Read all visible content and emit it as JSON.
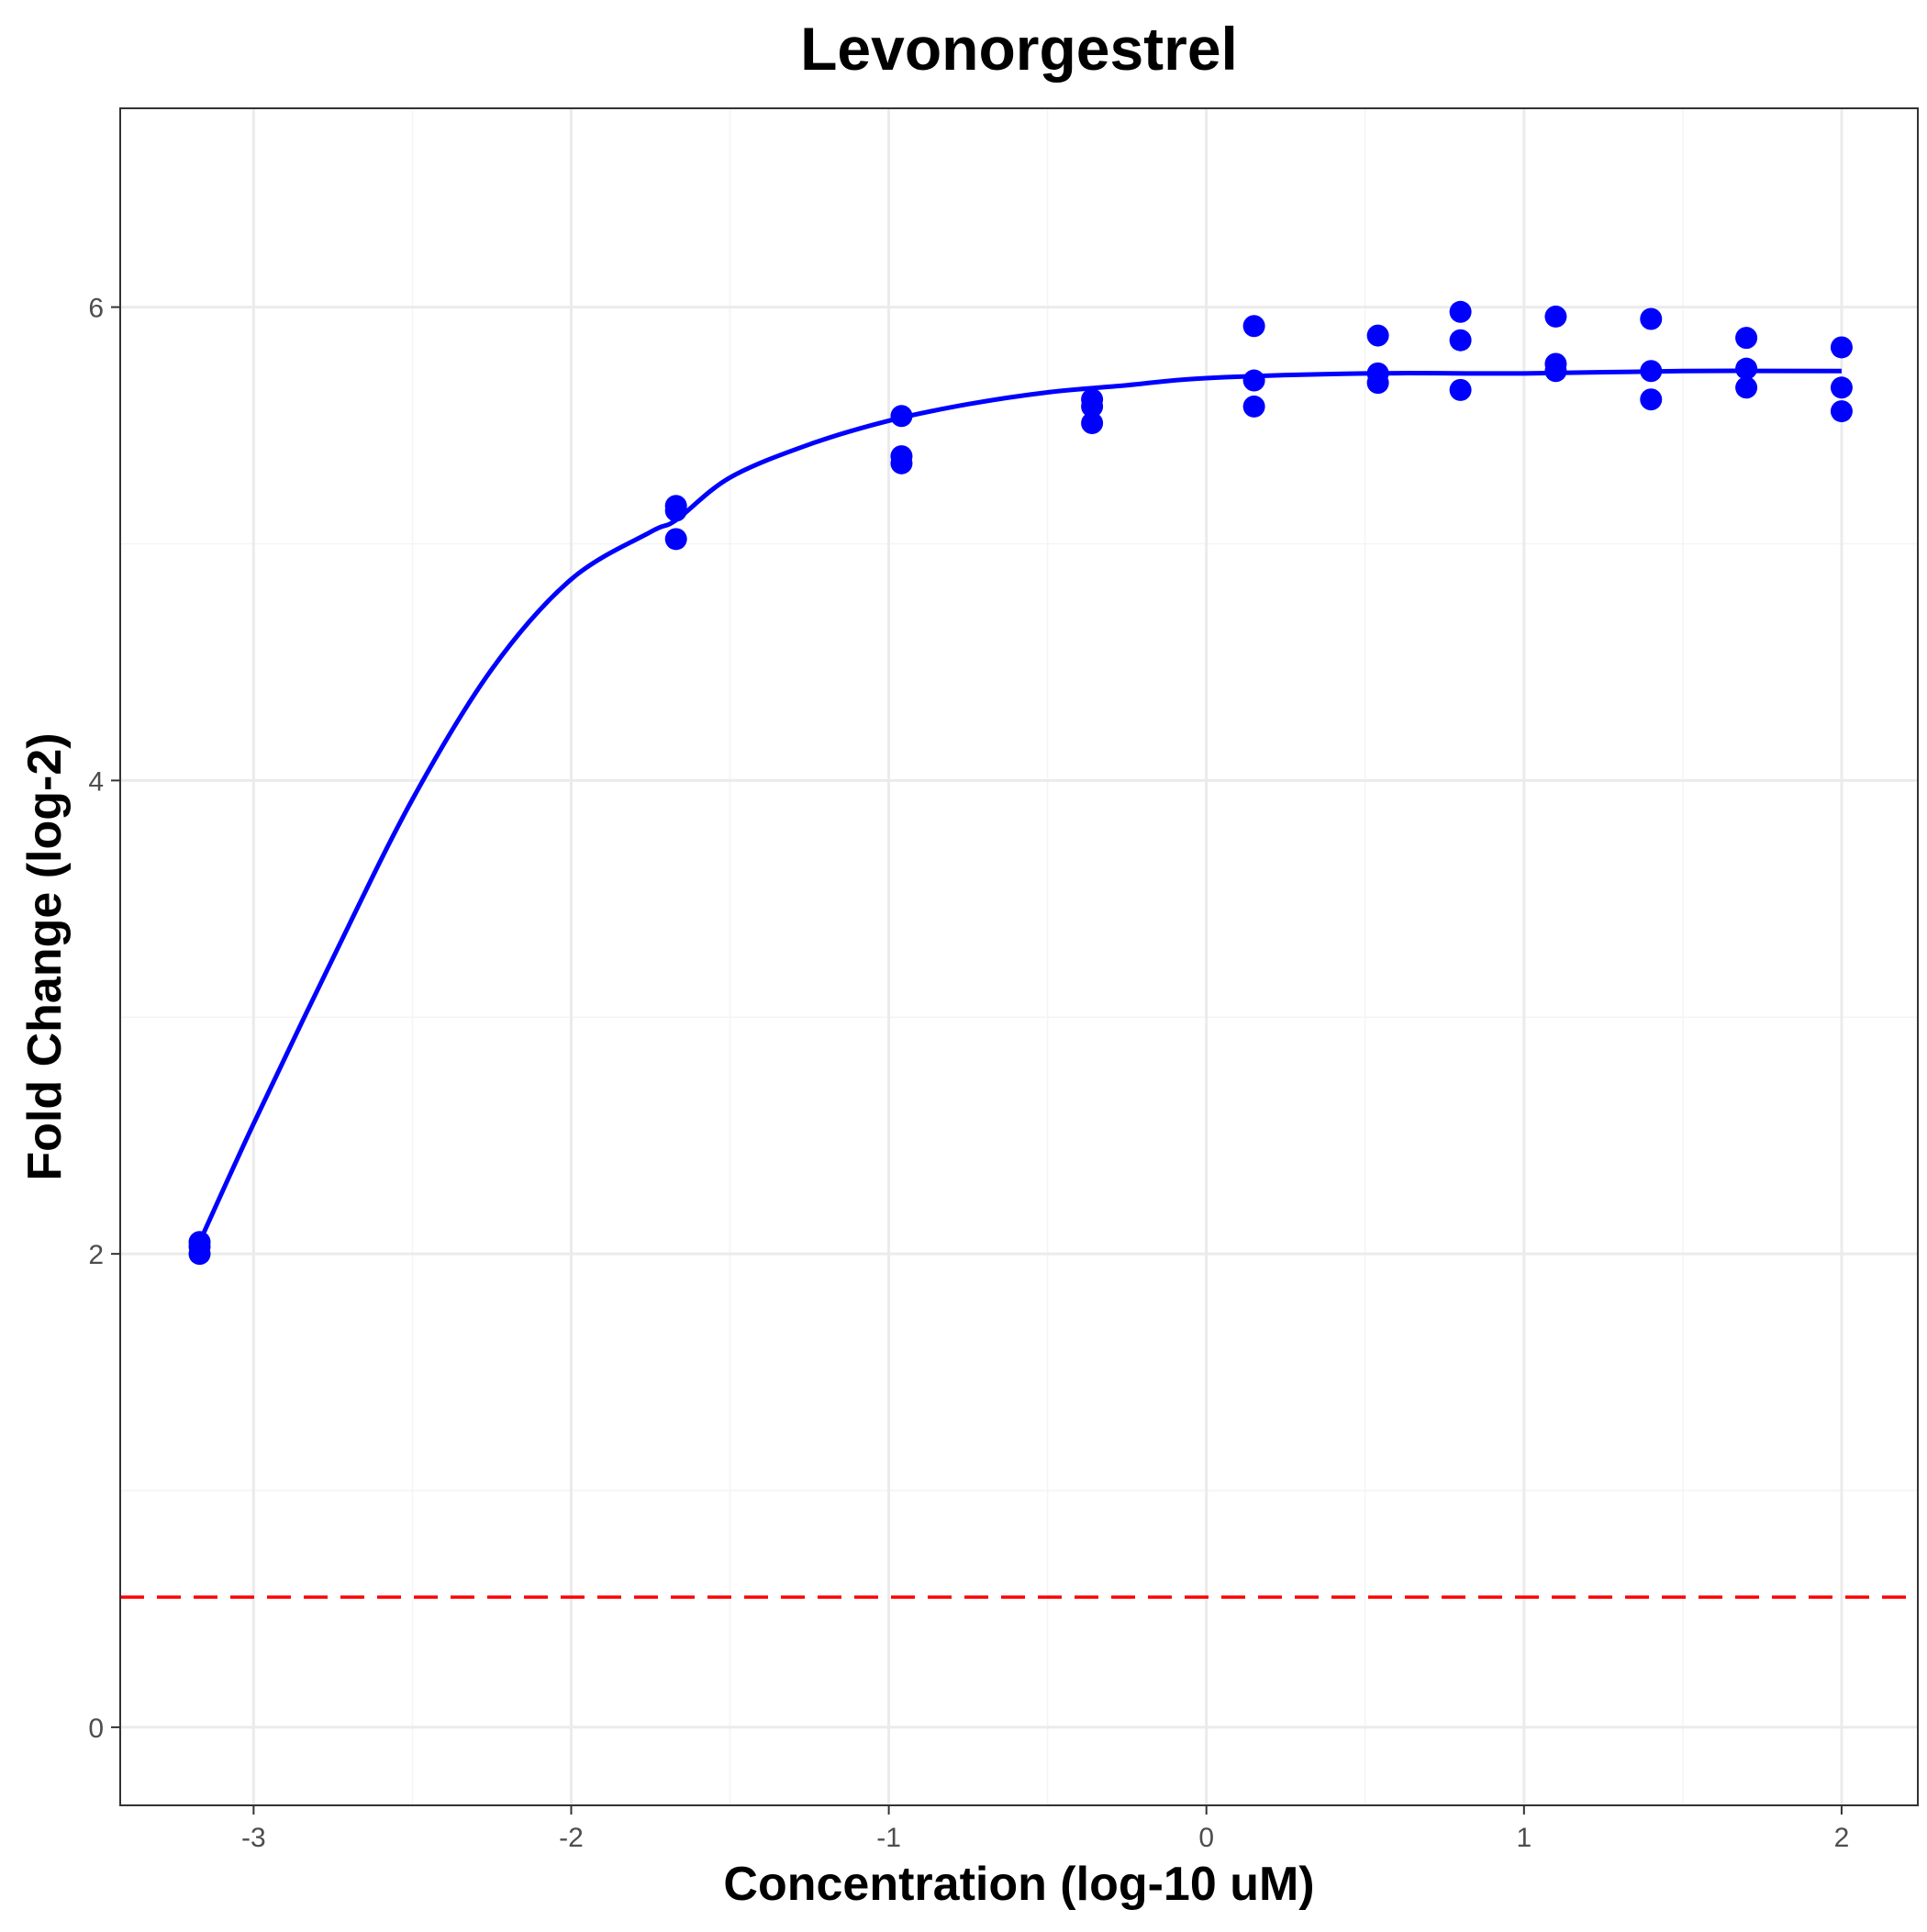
{
  "chart_data": {
    "type": "scatter",
    "title": "Levonorgestrel",
    "xlabel": "Concentration (log-10 uM)",
    "ylabel": "Fold Change (log-2)",
    "xlim": [
      -3.42,
      2.24
    ],
    "ylim": [
      -0.33,
      6.84
    ],
    "x_ticks": [
      -3,
      -2,
      -1,
      0,
      1,
      2
    ],
    "x_tick_labels": [
      "-3",
      "-2",
      "-1",
      "0",
      "1",
      "2"
    ],
    "y_ticks": [
      0,
      2,
      4,
      6
    ],
    "y_tick_labels": [
      "0",
      "2",
      "4",
      "6"
    ],
    "grid": true,
    "legend": "none",
    "colors": {
      "points": "#0000ff",
      "fit": "#0000ff",
      "reference": "#ff0000",
      "grid_major": "#ebebeb",
      "grid_minor": "#f4f4f4",
      "frame": "#333333"
    },
    "points": [
      {
        "x": -3.17,
        "y": 2.05
      },
      {
        "x": -3.17,
        "y": 2.03
      },
      {
        "x": -3.17,
        "y": 2.0
      },
      {
        "x": -1.67,
        "y": 5.16
      },
      {
        "x": -1.67,
        "y": 5.14
      },
      {
        "x": -1.67,
        "y": 5.02
      },
      {
        "x": -0.96,
        "y": 5.54
      },
      {
        "x": -0.96,
        "y": 5.37
      },
      {
        "x": -0.96,
        "y": 5.34
      },
      {
        "x": -0.36,
        "y": 5.61
      },
      {
        "x": -0.36,
        "y": 5.58
      },
      {
        "x": -0.36,
        "y": 5.51
      },
      {
        "x": 0.15,
        "y": 5.92
      },
      {
        "x": 0.15,
        "y": 5.69
      },
      {
        "x": 0.15,
        "y": 5.58
      },
      {
        "x": 0.54,
        "y": 5.88
      },
      {
        "x": 0.54,
        "y": 5.72
      },
      {
        "x": 0.54,
        "y": 5.68
      },
      {
        "x": 0.8,
        "y": 5.98
      },
      {
        "x": 0.8,
        "y": 5.86
      },
      {
        "x": 0.8,
        "y": 5.65
      },
      {
        "x": 1.1,
        "y": 5.96
      },
      {
        "x": 1.1,
        "y": 5.76
      },
      {
        "x": 1.1,
        "y": 5.73
      },
      {
        "x": 1.4,
        "y": 5.95
      },
      {
        "x": 1.4,
        "y": 5.73
      },
      {
        "x": 1.4,
        "y": 5.61
      },
      {
        "x": 1.7,
        "y": 5.87
      },
      {
        "x": 1.7,
        "y": 5.74
      },
      {
        "x": 1.7,
        "y": 5.66
      },
      {
        "x": 2.0,
        "y": 5.83
      },
      {
        "x": 2.0,
        "y": 5.66
      },
      {
        "x": 2.0,
        "y": 5.56
      }
    ],
    "fit_curve": {
      "x": [
        -3.17,
        -3.0,
        -2.75,
        -2.5,
        -2.25,
        -2.0,
        -1.75,
        -1.67,
        -1.5,
        -1.25,
        -1.0,
        -0.75,
        -0.5,
        -0.25,
        0.0,
        0.5,
        1.0,
        1.5,
        2.0
      ],
      "y": [
        2.05,
        2.55,
        3.25,
        3.92,
        4.47,
        4.85,
        5.05,
        5.1,
        5.28,
        5.42,
        5.52,
        5.59,
        5.64,
        5.67,
        5.7,
        5.72,
        5.72,
        5.73,
        5.73
      ]
    },
    "reference_line": {
      "y": 0.55,
      "style": "dashed"
    }
  }
}
